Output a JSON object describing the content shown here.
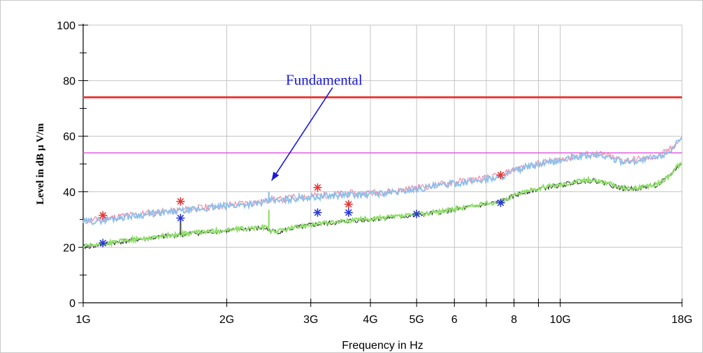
{
  "chart_data": {
    "type": "line",
    "xlabel": "Frequency in Hz",
    "ylabel": "Level in dB µ V/m",
    "x_scale": "log",
    "xlim": [
      "1G",
      "18G"
    ],
    "ylim": [
      0,
      100
    ],
    "grid": true,
    "x_ticks": [
      {
        "value": 1,
        "label": "1G"
      },
      {
        "value": 2,
        "label": "2G"
      },
      {
        "value": 3,
        "label": "3G"
      },
      {
        "value": 4,
        "label": "4G"
      },
      {
        "value": 5,
        "label": "5G"
      },
      {
        "value": 6,
        "label": "6"
      },
      {
        "value": 7,
        "label": ""
      },
      {
        "value": 8,
        "label": "8"
      },
      {
        "value": 9,
        "label": ""
      },
      {
        "value": 10,
        "label": "10G"
      },
      {
        "value": 18,
        "label": "18G"
      }
    ],
    "y_ticks": [
      {
        "value": 0,
        "label": "0"
      },
      {
        "value": 20,
        "label": "20"
      },
      {
        "value": 40,
        "label": "40"
      },
      {
        "value": 60,
        "label": "60"
      },
      {
        "value": 80,
        "label": "80"
      },
      {
        "value": 100,
        "label": "100"
      }
    ],
    "limit_lines": [
      {
        "value": 74,
        "color": "#e8413c"
      },
      {
        "value": 54,
        "color": "#e05ce0"
      }
    ],
    "series": [
      {
        "kind": "peak-trace",
        "color": "#8fc0ec",
        "x": [
          1.0,
          1.1,
          1.2,
          1.35,
          1.5,
          1.6,
          1.7,
          1.85,
          2.0,
          2.2,
          2.4,
          2.5,
          2.55,
          2.7,
          2.9,
          3.0,
          3.2,
          3.5,
          3.6,
          3.8,
          4.0,
          4.5,
          5.0,
          5.5,
          6.0,
          6.5,
          7.0,
          7.5,
          8.0,
          8.5,
          9.0,
          9.5,
          10.0,
          10.5,
          11.0,
          11.5,
          12.0,
          12.5,
          13.0,
          13.5,
          14.0,
          15.0,
          16.0,
          16.5,
          17.0,
          17.5,
          18.0
        ],
        "values": [
          29,
          29.8,
          30.8,
          31.8,
          32.5,
          33,
          33.5,
          34.2,
          34.8,
          35.5,
          36,
          37.3,
          36.5,
          37.3,
          38,
          38,
          38.4,
          38.8,
          39,
          38.8,
          39.2,
          39.8,
          41,
          42,
          43,
          43.8,
          44.5,
          45.3,
          47.5,
          48.8,
          49.7,
          50.5,
          51.2,
          52,
          52.8,
          53,
          53.2,
          52.6,
          51.6,
          51,
          51,
          51.5,
          52.5,
          53.5,
          55,
          57,
          58.5
        ]
      },
      {
        "kind": "average-trace",
        "color": "#8fe06a",
        "x": [
          1.0,
          1.1,
          1.2,
          1.35,
          1.5,
          1.6,
          1.7,
          1.85,
          2.0,
          2.2,
          2.4,
          2.45,
          2.55,
          2.7,
          2.9,
          3.0,
          3.2,
          3.5,
          3.6,
          3.8,
          4.0,
          4.5,
          5.0,
          5.5,
          6.0,
          6.5,
          7.0,
          7.5,
          8.0,
          8.5,
          9.0,
          9.5,
          10.0,
          10.5,
          11.0,
          11.5,
          12.0,
          12.5,
          13.0,
          13.5,
          14.0,
          15.0,
          16.0,
          16.5,
          17.0,
          17.5,
          18.0
        ],
        "values": [
          20,
          21,
          22,
          23,
          24,
          24.5,
          25,
          25.5,
          26,
          26.5,
          27,
          26,
          25.5,
          26.5,
          27.5,
          28,
          28.5,
          29,
          29.5,
          29.8,
          30,
          30.8,
          31.5,
          32.5,
          33.5,
          34.5,
          35.5,
          36.2,
          38.5,
          40,
          41,
          41.8,
          42.3,
          43,
          43.8,
          44,
          43.8,
          43,
          42,
          41.2,
          41,
          41.5,
          42.5,
          44,
          46,
          48.5,
          50
        ]
      }
    ],
    "markers": [
      {
        "x": 1.1,
        "y": 31.5,
        "color": "#e03a3a"
      },
      {
        "x": 1.6,
        "y": 36.5,
        "color": "#e03a3a"
      },
      {
        "x": 3.1,
        "y": 41.5,
        "color": "#e03a3a"
      },
      {
        "x": 3.6,
        "y": 35.5,
        "color": "#e03a3a"
      },
      {
        "x": 7.5,
        "y": 46,
        "color": "#e03a3a"
      },
      {
        "x": 1.1,
        "y": 21.5,
        "color": "#2a3ad0"
      },
      {
        "x": 1.6,
        "y": 30.5,
        "color": "#2a3ad0"
      },
      {
        "x": 3.1,
        "y": 32.5,
        "color": "#2a3ad0"
      },
      {
        "x": 3.6,
        "y": 32.5,
        "color": "#2a3ad0"
      },
      {
        "x": 5.0,
        "y": 32,
        "color": "#2a3ad0"
      },
      {
        "x": 7.5,
        "y": 36,
        "color": "#2a3ad0"
      }
    ],
    "spikes": [
      {
        "x": 2.45,
        "from": 36,
        "to": 40,
        "color": "#8fc0ec"
      },
      {
        "x": 2.45,
        "from": 26,
        "to": 33.5,
        "color": "#8fe06a"
      },
      {
        "x": 1.6,
        "from": 24.5,
        "to": 30,
        "color": "#555555"
      }
    ],
    "annotations": [
      {
        "text": "Fundamental",
        "x": 3.2,
        "y": 78.5,
        "target_x": 2.45,
        "target_y": 43,
        "color": "#1a1ad6"
      }
    ]
  }
}
